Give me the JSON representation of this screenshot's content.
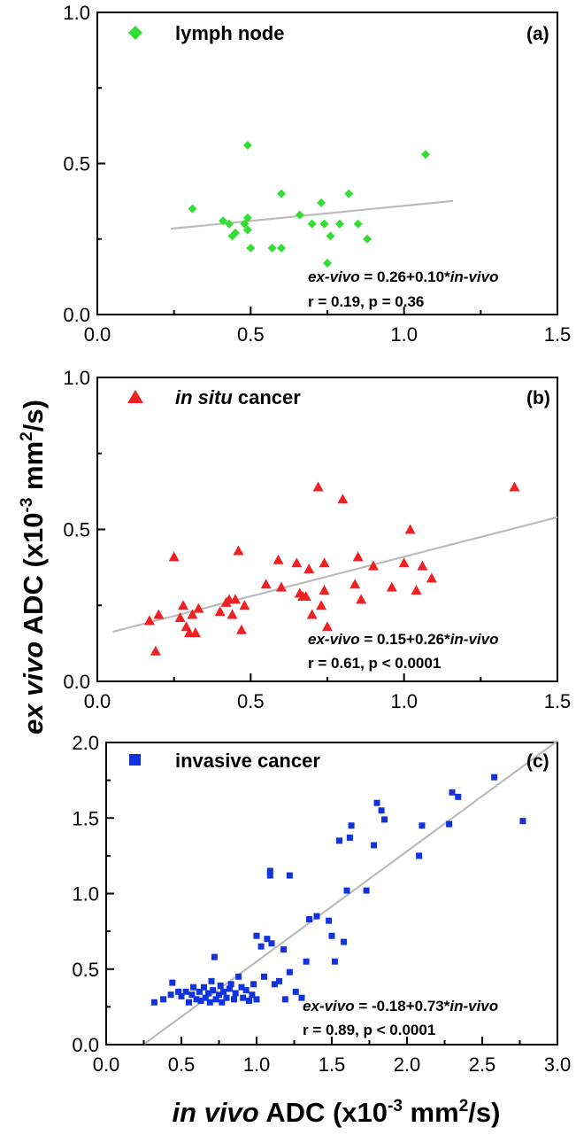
{
  "chart_data": [
    {
      "type": "scatter",
      "panel": "(a)",
      "legend": {
        "label": "lymph node",
        "marker": "diamond",
        "color": "#33dd33",
        "placement": "top-left"
      },
      "xlim": [
        0.0,
        1.5
      ],
      "ylim": [
        0.0,
        1.0
      ],
      "x_ticks": [
        "0.0",
        "0.5",
        "1.0",
        "1.5"
      ],
      "y_ticks": [
        "0.0",
        "0.5",
        "1.0"
      ],
      "points": [
        [
          0.31,
          0.35
        ],
        [
          0.41,
          0.31
        ],
        [
          0.43,
          0.3
        ],
        [
          0.44,
          0.26
        ],
        [
          0.45,
          0.27
        ],
        [
          0.48,
          0.3
        ],
        [
          0.49,
          0.32
        ],
        [
          0.49,
          0.28
        ],
        [
          0.49,
          0.56
        ],
        [
          0.5,
          0.22
        ],
        [
          0.57,
          0.22
        ],
        [
          0.6,
          0.22
        ],
        [
          0.6,
          0.4
        ],
        [
          0.66,
          0.33
        ],
        [
          0.7,
          0.3
        ],
        [
          0.73,
          0.37
        ],
        [
          0.74,
          0.3
        ],
        [
          0.75,
          0.17
        ],
        [
          0.76,
          0.26
        ],
        [
          0.79,
          0.3
        ],
        [
          0.82,
          0.4
        ],
        [
          0.85,
          0.3
        ],
        [
          0.88,
          0.25
        ],
        [
          1.07,
          0.53
        ]
      ],
      "fit": {
        "intercept": 0.26,
        "slope": 0.1,
        "x_range": [
          0.24,
          1.16
        ],
        "color": "#bbbbbb"
      },
      "equation": {
        "lhs": "ex-vivo",
        "middle": " = 0.26+0.10*",
        "rhs": "in-vivo"
      },
      "stats": "r = 0.19, p = 0.36"
    },
    {
      "type": "scatter",
      "panel": "(b)",
      "legend": {
        "label_italic": "in situ",
        "label_rest": " cancer",
        "marker": "triangle",
        "color": "#ee2222",
        "placement": "top-left"
      },
      "xlim": [
        0.0,
        1.5
      ],
      "ylim": [
        0.0,
        1.0
      ],
      "x_ticks": [
        "0.0",
        "0.5",
        "1.0",
        "1.5"
      ],
      "y_ticks": [
        "0.0",
        "0.5",
        "1.0"
      ],
      "points": [
        [
          0.17,
          0.2
        ],
        [
          0.19,
          0.1
        ],
        [
          0.2,
          0.22
        ],
        [
          0.25,
          0.41
        ],
        [
          0.27,
          0.21
        ],
        [
          0.28,
          0.25
        ],
        [
          0.29,
          0.18
        ],
        [
          0.3,
          0.16
        ],
        [
          0.31,
          0.22
        ],
        [
          0.32,
          0.16
        ],
        [
          0.33,
          0.24
        ],
        [
          0.4,
          0.23
        ],
        [
          0.42,
          0.26
        ],
        [
          0.43,
          0.27
        ],
        [
          0.44,
          0.22
        ],
        [
          0.45,
          0.27
        ],
        [
          0.46,
          0.43
        ],
        [
          0.47,
          0.17
        ],
        [
          0.48,
          0.25
        ],
        [
          0.55,
          0.32
        ],
        [
          0.59,
          0.4
        ],
        [
          0.6,
          0.31
        ],
        [
          0.65,
          0.39
        ],
        [
          0.66,
          0.29
        ],
        [
          0.67,
          0.28
        ],
        [
          0.68,
          0.28
        ],
        [
          0.69,
          0.37
        ],
        [
          0.7,
          0.22
        ],
        [
          0.72,
          0.64
        ],
        [
          0.73,
          0.25
        ],
        [
          0.74,
          0.39
        ],
        [
          0.74,
          0.3
        ],
        [
          0.75,
          0.18
        ],
        [
          0.8,
          0.6
        ],
        [
          0.84,
          0.32
        ],
        [
          0.85,
          0.41
        ],
        [
          0.86,
          0.27
        ],
        [
          0.9,
          0.38
        ],
        [
          0.96,
          0.31
        ],
        [
          1.0,
          0.39
        ],
        [
          1.02,
          0.5
        ],
        [
          1.04,
          0.3
        ],
        [
          1.06,
          0.38
        ],
        [
          1.09,
          0.34
        ],
        [
          1.36,
          0.64
        ]
      ],
      "fit": {
        "intercept": 0.15,
        "slope": 0.26,
        "x_range": [
          0.05,
          1.5
        ],
        "color": "#bbbbbb"
      },
      "equation": {
        "lhs": "ex-vivo",
        "middle": " = 0.15+0.26*",
        "rhs": "in-vivo"
      },
      "stats": "r = 0.61, p < 0.0001"
    },
    {
      "type": "scatter",
      "panel": "(c)",
      "legend": {
        "label": "invasive cancer",
        "marker": "square",
        "color": "#1133dd",
        "placement": "top-left"
      },
      "xlim": [
        0.0,
        3.0
      ],
      "ylim": [
        0.0,
        2.0
      ],
      "x_ticks": [
        "0.0",
        "0.5",
        "1.0",
        "1.5",
        "2.0",
        "2.5",
        "3.0"
      ],
      "y_ticks": [
        "0.0",
        "0.5",
        "1.0",
        "1.5",
        "2.0"
      ],
      "points": [
        [
          0.32,
          0.28
        ],
        [
          0.38,
          0.3
        ],
        [
          0.43,
          0.33
        ],
        [
          0.44,
          0.41
        ],
        [
          0.48,
          0.35
        ],
        [
          0.5,
          0.32
        ],
        [
          0.53,
          0.35
        ],
        [
          0.55,
          0.28
        ],
        [
          0.57,
          0.33
        ],
        [
          0.58,
          0.38
        ],
        [
          0.6,
          0.3
        ],
        [
          0.62,
          0.35
        ],
        [
          0.63,
          0.29
        ],
        [
          0.65,
          0.38
        ],
        [
          0.66,
          0.31
        ],
        [
          0.68,
          0.34
        ],
        [
          0.69,
          0.28
        ],
        [
          0.7,
          0.42
        ],
        [
          0.71,
          0.36
        ],
        [
          0.72,
          0.58
        ],
        [
          0.73,
          0.3
        ],
        [
          0.75,
          0.33
        ],
        [
          0.76,
          0.39
        ],
        [
          0.77,
          0.28
        ],
        [
          0.78,
          0.35
        ],
        [
          0.8,
          0.31
        ],
        [
          0.82,
          0.37
        ],
        [
          0.83,
          0.4
        ],
        [
          0.85,
          0.3
        ],
        [
          0.86,
          0.34
        ],
        [
          0.88,
          0.45
        ],
        [
          0.9,
          0.38
        ],
        [
          0.91,
          0.31
        ],
        [
          0.93,
          0.36
        ],
        [
          0.95,
          0.29
        ],
        [
          0.97,
          0.33
        ],
        [
          0.98,
          0.4
        ],
        [
          1.0,
          0.3
        ],
        [
          1.0,
          0.72
        ],
        [
          1.03,
          0.65
        ],
        [
          1.05,
          0.45
        ],
        [
          1.07,
          0.7
        ],
        [
          1.09,
          1.15
        ],
        [
          1.09,
          1.12
        ],
        [
          1.1,
          0.67
        ],
        [
          1.12,
          0.4
        ],
        [
          1.15,
          0.42
        ],
        [
          1.18,
          0.63
        ],
        [
          1.19,
          0.3
        ],
        [
          1.22,
          0.48
        ],
        [
          1.22,
          1.12
        ],
        [
          1.26,
          0.35
        ],
        [
          1.3,
          0.31
        ],
        [
          1.33,
          0.55
        ],
        [
          1.35,
          0.83
        ],
        [
          1.4,
          0.85
        ],
        [
          1.48,
          0.82
        ],
        [
          1.5,
          0.72
        ],
        [
          1.52,
          0.55
        ],
        [
          1.55,
          1.35
        ],
        [
          1.58,
          0.68
        ],
        [
          1.6,
          1.02
        ],
        [
          1.62,
          1.37
        ],
        [
          1.63,
          1.45
        ],
        [
          1.73,
          1.02
        ],
        [
          1.78,
          1.32
        ],
        [
          1.8,
          1.6
        ],
        [
          1.83,
          1.55
        ],
        [
          1.85,
          1.49
        ],
        [
          2.08,
          1.25
        ],
        [
          2.1,
          1.45
        ],
        [
          2.28,
          1.46
        ],
        [
          2.3,
          1.67
        ],
        [
          2.34,
          1.64
        ],
        [
          2.58,
          1.77
        ],
        [
          2.77,
          1.48
        ]
      ],
      "fit": {
        "intercept": -0.18,
        "slope": 0.73,
        "x_range": [
          0.25,
          3.0
        ],
        "color": "#bbbbbb"
      },
      "equation": {
        "lhs": "ex-vivo",
        "middle": " = -0.18+0.73*",
        "rhs": "in-vivo"
      },
      "stats": "r = 0.89, p < 0.0001"
    }
  ],
  "axis_titles": {
    "y_italic": "ex vivo",
    "y_rest": " ADC (x10",
    "y_exp": "-3",
    "y_unit": " mm",
    "y_unit_exp": "2",
    "y_end": "/s)",
    "x_italic": "in vivo",
    "x_rest": " ADC (x10",
    "x_exp": "-3",
    "x_unit": " mm",
    "x_unit_exp": "2",
    "x_end": "/s)"
  }
}
